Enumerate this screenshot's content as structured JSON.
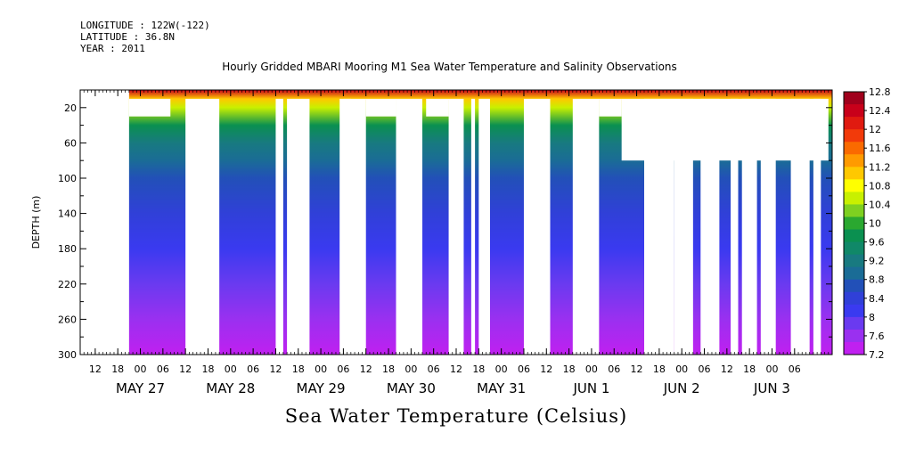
{
  "header": {
    "longitude": "LONGITUDE : 122W(-122)",
    "latitude": "LATITUDE : 36.8N",
    "year": "YEAR : 2011"
  },
  "chart_data": {
    "type": "heatmap",
    "title": "Hourly Gridded MBARI Mooring M1 Sea Water Temperature and Salinity Observations",
    "xlabel": "Sea Water Temperature (Celsius)",
    "ylabel": "DEPTH (m)",
    "x_range": [
      "2011-05-26T08:00",
      "2011-06-03T16:00"
    ],
    "ylim": [
      300,
      0
    ],
    "y_ticks": [
      20,
      60,
      100,
      140,
      180,
      220,
      260,
      300
    ],
    "x_hour_ticks": [
      "12",
      "18",
      "00",
      "06",
      "12",
      "18",
      "00",
      "06",
      "12",
      "18",
      "00",
      "06",
      "12",
      "18",
      "00",
      "06",
      "12",
      "18",
      "00",
      "06",
      "12",
      "18",
      "00",
      "06",
      "12",
      "18",
      "00",
      "06",
      "12",
      "18",
      "00",
      "06"
    ],
    "x_day_labels": [
      "MAY 27",
      "MAY 28",
      "MAY 29",
      "MAY 30",
      "MAY 31",
      "JUN  1",
      "JUN  2",
      "JUN  3"
    ],
    "colorbar_labels": [
      "12.8",
      "12.4",
      "12",
      "11.6",
      "11.2",
      "10.8",
      "10.4",
      "10",
      "9.6",
      "9.2",
      "8.8",
      "8.4",
      "8",
      "7.6",
      "7.2"
    ],
    "colorbar_colors": [
      "#a0001c",
      "#c8001a",
      "#e01a10",
      "#f23a0a",
      "#fa6a00",
      "#ff9a00",
      "#ffc800",
      "#ffff00",
      "#c8f000",
      "#7ed020",
      "#2aa830",
      "#0a9050",
      "#108868",
      "#187a80",
      "#1a6c96",
      "#2250b8",
      "#3040d8",
      "#3a3af0",
      "#6a3af0",
      "#9a30f0",
      "#c020f0"
    ],
    "temperature_profile": {
      "depths": [
        0,
        10,
        20,
        40,
        60,
        80,
        100,
        140,
        180,
        220,
        260,
        300
      ],
      "values": [
        12.6,
        11.0,
        10.6,
        9.6,
        9.1,
        8.8,
        8.6,
        8.3,
        8.0,
        7.8,
        7.6,
        7.3
      ]
    },
    "data_gaps": [
      {
        "start": "2011-05-26T08:00",
        "end": "2011-05-26T21:00",
        "from_depth": 0,
        "to_depth": 300
      },
      {
        "start": "2011-05-26T21:00",
        "end": "2011-05-27T08:00",
        "from_depth": 10,
        "to_depth": 30
      },
      {
        "start": "2011-05-27T12:00",
        "end": "2011-05-27T21:00",
        "from_depth": 10,
        "to_depth": 300
      },
      {
        "start": "2011-05-28T12:00",
        "end": "2011-05-28T14:00",
        "from_depth": 10,
        "to_depth": 300
      },
      {
        "start": "2011-05-28T15:00",
        "end": "2011-05-28T21:00",
        "from_depth": 10,
        "to_depth": 300
      },
      {
        "start": "2011-05-29T05:00",
        "end": "2011-05-29T12:00",
        "from_depth": 10,
        "to_depth": 300
      },
      {
        "start": "2011-05-29T06:00",
        "end": "2011-05-29T08:00",
        "from_depth": 10,
        "to_depth": 300
      },
      {
        "start": "2011-05-29T12:00",
        "end": "2011-05-29T20:00",
        "from_depth": 10,
        "to_depth": 30
      },
      {
        "start": "2011-05-29T20:00",
        "end": "2011-05-30T03:00",
        "from_depth": 10,
        "to_depth": 300
      },
      {
        "start": "2011-05-30T04:00",
        "end": "2011-05-30T10:00",
        "from_depth": 10,
        "to_depth": 30
      },
      {
        "start": "2011-05-30T10:00",
        "end": "2011-05-30T14:00",
        "from_depth": 10,
        "to_depth": 300
      },
      {
        "start": "2011-05-30T16:00",
        "end": "2011-05-30T17:00",
        "from_depth": 10,
        "to_depth": 300
      },
      {
        "start": "2011-05-30T18:00",
        "end": "2011-05-30T21:00",
        "from_depth": 10,
        "to_depth": 300
      },
      {
        "start": "2011-05-31T06:00",
        "end": "2011-05-31T13:00",
        "from_depth": 10,
        "to_depth": 300
      },
      {
        "start": "2011-05-31T19:00",
        "end": "2011-06-01T02:00",
        "from_depth": 10,
        "to_depth": 300
      },
      {
        "start": "2011-06-01T02:00",
        "end": "2011-06-01T08:00",
        "from_depth": 10,
        "to_depth": 30
      },
      {
        "start": "2011-06-01T08:00",
        "end": "2011-06-03T15:00",
        "from_depth": 10,
        "to_depth": 80
      },
      {
        "start": "2011-06-01T14:00",
        "end": "2011-06-01T22:00",
        "from_depth": 10,
        "to_depth": 300
      },
      {
        "start": "2011-06-01T22:00",
        "end": "2011-06-02T03:00",
        "from_depth": 10,
        "to_depth": 300
      },
      {
        "start": "2011-06-02T05:00",
        "end": "2011-06-02T10:00",
        "from_depth": 10,
        "to_depth": 300
      },
      {
        "start": "2011-06-02T13:00",
        "end": "2011-06-02T15:00",
        "from_depth": 10,
        "to_depth": 300
      },
      {
        "start": "2011-06-02T16:00",
        "end": "2011-06-02T20:00",
        "from_depth": 10,
        "to_depth": 300
      },
      {
        "start": "2011-06-02T21:00",
        "end": "2011-06-03T01:00",
        "from_depth": 10,
        "to_depth": 300
      },
      {
        "start": "2011-06-03T05:00",
        "end": "2011-06-03T10:00",
        "from_depth": 10,
        "to_depth": 300
      },
      {
        "start": "2011-06-03T11:00",
        "end": "2011-06-03T13:00",
        "from_depth": 10,
        "to_depth": 300
      }
    ]
  }
}
